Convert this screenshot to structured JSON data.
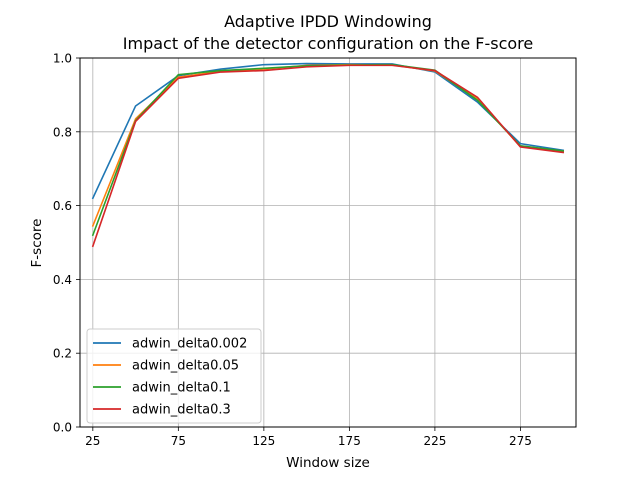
{
  "chart_data": {
    "type": "line",
    "title": "Adaptive IPDD Windowing",
    "subtitle": "Impact of the detector configuration on the F-score",
    "xlabel": "Window size",
    "ylabel": "F-score",
    "xlim": [
      17.5,
      307.5
    ],
    "ylim": [
      0.0,
      1.0
    ],
    "xticks": [
      25,
      75,
      125,
      175,
      225,
      275
    ],
    "yticks": [
      0.0,
      0.2,
      0.4,
      0.6,
      0.8,
      1.0
    ],
    "grid": true,
    "legend_position": "lower-left",
    "x": [
      25,
      50,
      75,
      100,
      125,
      150,
      175,
      200,
      225,
      250,
      275,
      300
    ],
    "series": [
      {
        "name": "adwin_delta0.002",
        "color": "#1f77b4",
        "values": [
          0.62,
          0.87,
          0.952,
          0.97,
          0.982,
          0.985,
          0.984,
          0.984,
          0.962,
          0.88,
          0.768,
          0.75
        ]
      },
      {
        "name": "adwin_delta0.05",
        "color": "#ff7f0e",
        "values": [
          0.545,
          0.835,
          0.948,
          0.964,
          0.97,
          0.98,
          0.982,
          0.981,
          0.965,
          0.888,
          0.76,
          0.745
        ]
      },
      {
        "name": "adwin_delta0.1",
        "color": "#2ca02c",
        "values": [
          0.52,
          0.83,
          0.955,
          0.966,
          0.972,
          0.979,
          0.981,
          0.982,
          0.967,
          0.885,
          0.762,
          0.748
        ]
      },
      {
        "name": "adwin_delta0.3",
        "color": "#d62728",
        "values": [
          0.49,
          0.828,
          0.945,
          0.962,
          0.966,
          0.976,
          0.98,
          0.98,
          0.966,
          0.893,
          0.759,
          0.744
        ]
      }
    ]
  }
}
